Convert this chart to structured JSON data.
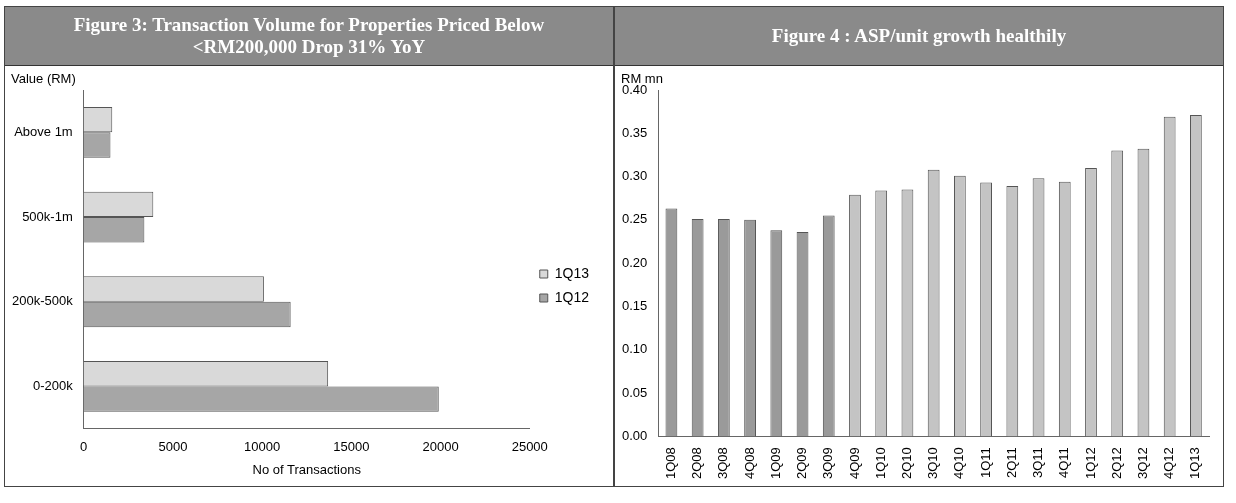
{
  "chart_data": [
    {
      "type": "bar",
      "title": "Figure 3: Transaction Volume for Properties Priced Below <RM200,000 Drop 31% YoY",
      "orientation": "horizontal",
      "categories": [
        "Above 1m",
        "500k-1m",
        "200k-500k",
        "0-200k"
      ],
      "series": [
        {
          "name": "1Q13",
          "color": "#d9d9d9",
          "values": [
            1600,
            3900,
            10100,
            13700
          ]
        },
        {
          "name": "1Q12",
          "color": "#a6a6a6",
          "values": [
            1500,
            3400,
            11600,
            19900
          ]
        }
      ],
      "xlim": [
        0,
        25000
      ],
      "xticks": [
        0,
        5000,
        10000,
        15000,
        20000,
        25000
      ],
      "xlabel": "No of Transactions",
      "ylabel": "Value (RM)",
      "legend": "right",
      "grid": false
    },
    {
      "type": "bar",
      "title": "Figure 4 :  ASP/unit growth healthily",
      "categories": [
        "1Q08",
        "2Q08",
        "3Q08",
        "4Q08",
        "1Q09",
        "2Q09",
        "3Q09",
        "4Q09",
        "1Q10",
        "2Q10",
        "3Q10",
        "4Q10",
        "1Q11",
        "2Q11",
        "3Q11",
        "4Q11",
        "1Q12",
        "2Q12",
        "3Q12",
        "4Q12",
        "1Q13"
      ],
      "values": [
        0.263,
        0.251,
        0.251,
        0.25,
        0.238,
        0.236,
        0.255,
        0.279,
        0.284,
        0.285,
        0.308,
        0.301,
        0.293,
        0.289,
        0.298,
        0.294,
        0.31,
        0.33,
        0.332,
        0.369,
        0.371
      ],
      "colors": [
        "#9a9a9a",
        "#9a9a9a",
        "#9a9a9a",
        "#9a9a9a",
        "#9a9a9a",
        "#9a9a9a",
        "#9a9a9a",
        "#c4c4c4",
        "#c4c4c4",
        "#c4c4c4",
        "#c4c4c4",
        "#c4c4c4",
        "#c4c4c4",
        "#c4c4c4",
        "#c4c4c4",
        "#c4c4c4",
        "#c4c4c4",
        "#c4c4c4",
        "#c4c4c4",
        "#c4c4c4",
        "#c4c4c4"
      ],
      "ylim": [
        0,
        0.4
      ],
      "yticks": [
        {
          "value": 0,
          "label": "0.00"
        },
        {
          "value": 0.05,
          "label": "0.05"
        },
        {
          "value": 0.1,
          "label": "0.10"
        },
        {
          "value": 0.15,
          "label": "0.15"
        },
        {
          "value": 0.2,
          "label": "0.20"
        },
        {
          "value": 0.25,
          "label": "0.25"
        },
        {
          "value": 0.3,
          "label": "0.30"
        },
        {
          "value": 0.35,
          "label": "0.35"
        },
        {
          "value": 0.4,
          "label": "0.40"
        }
      ],
      "ylabel": "RM mn",
      "legend": false,
      "grid": false
    }
  ]
}
